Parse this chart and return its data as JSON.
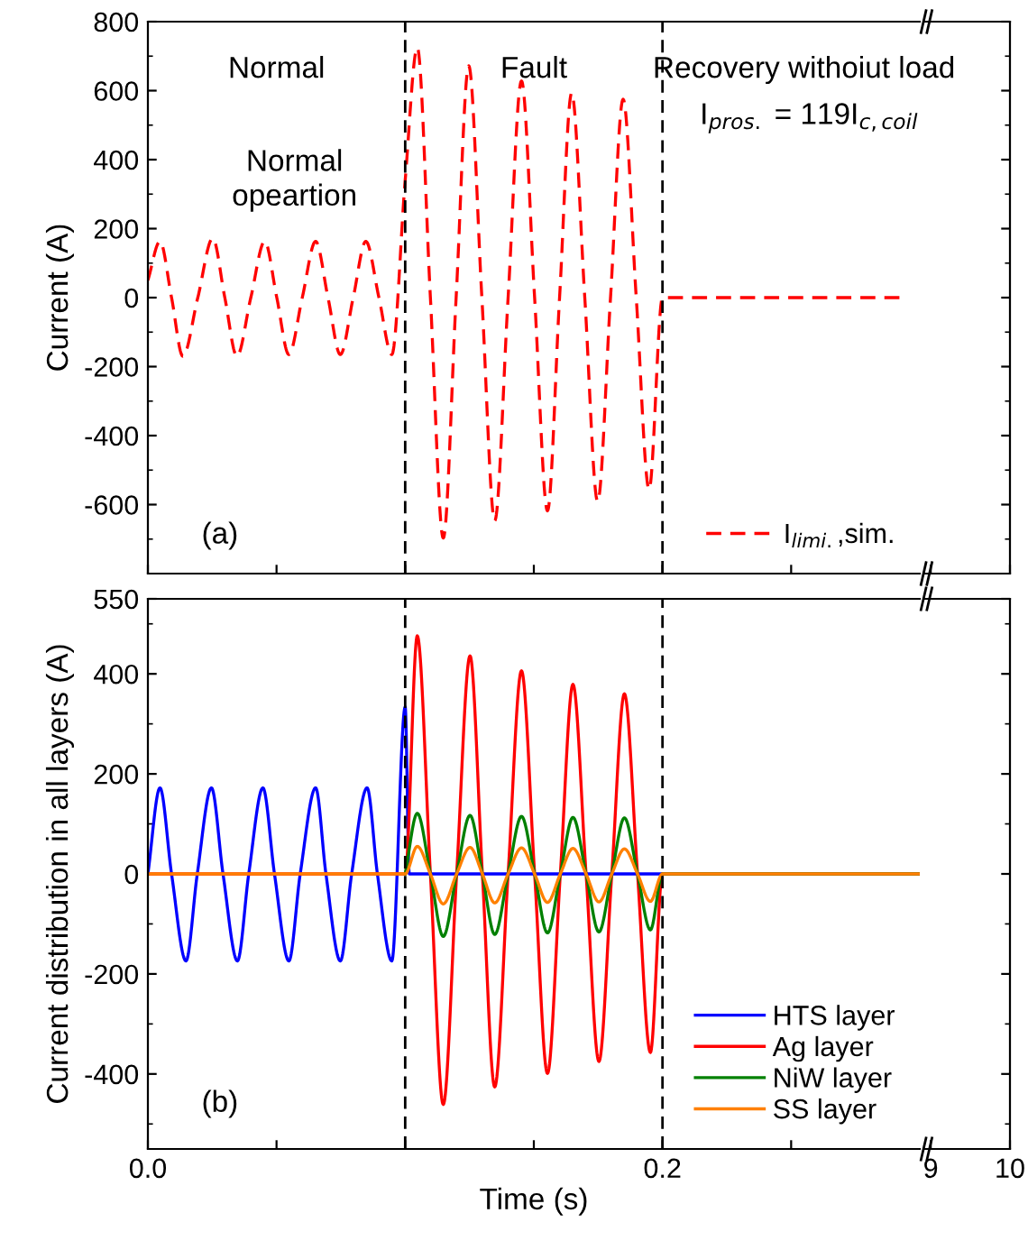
{
  "chart_data": [
    {
      "type": "line",
      "ylabel": "Current (A)",
      "xlim": [
        0,
        0.3
      ],
      "ylim": [
        -800,
        800
      ],
      "xticks": [
        {
          "value": 0,
          "label": null
        },
        {
          "value": 0.05,
          "label": null
        },
        {
          "value": 0.1,
          "label": null
        },
        {
          "value": 0.15,
          "label": null
        },
        {
          "value": 0.2,
          "label": null
        },
        {
          "value": 0.25,
          "label": null
        }
      ],
      "yticks": [
        -600,
        -400,
        -200,
        0,
        200,
        400,
        600,
        800
      ],
      "tick_labels": "y",
      "legend": "bottom right",
      "line_style": "dashed",
      "annotations": [
        "Normal",
        "Fault",
        "Recovery withoiut load",
        "Normal\nopeartion",
        "(a)",
        "I$_{pros.}$ = 119I$_{c,coil}$"
      ],
      "ref_lines": [
        {
          "axis": "x",
          "value": 0.1,
          "color": "#000000",
          "line_style": "dashed"
        },
        {
          "axis": "x",
          "value": 0.2,
          "color": "#000000",
          "line_style": "dashed"
        }
      ],
      "series": [
        {
          "name": "I$_{limi.}$,sim.",
          "color": "#ff0000",
          "x": [
            0,
            0.0047,
            0.0092,
            0.0136,
            0.0194,
            0.0252,
            0.0299,
            0.0346,
            0.04,
            0.0454,
            0.0501,
            0.0548,
            0.06,
            0.0652,
            0.07,
            0.0748,
            0.0798,
            0.0847,
            0.0898,
            0.0948,
            0.1,
            0.1047,
            0.1098,
            0.1148,
            0.1198,
            0.1247,
            0.1298,
            0.1348,
            0.14,
            0.1452,
            0.1503,
            0.1553,
            0.16,
            0.1647,
            0.1698,
            0.1748,
            0.1798,
            0.1847,
            0.1898,
            0.1948,
            0.2,
            0.25,
            0.294
          ],
          "values": [
            50,
            163,
            0,
            -170,
            0,
            172,
            0,
            -170,
            0,
            163,
            0,
            -165,
            0,
            163,
            0,
            -165,
            0,
            163,
            0,
            -165,
            340,
            725,
            0,
            -697,
            0,
            672,
            0,
            -647,
            0,
            628,
            0,
            -618,
            0,
            593,
            0,
            -591,
            0,
            575,
            0,
            -556,
            0,
            0,
            0
          ]
        }
      ]
    },
    {
      "type": "line",
      "xlim": [
        8.93,
        10
      ],
      "ylim": [
        -800,
        800
      ],
      "xticks": [
        9,
        10
      ],
      "yticks": [
        -600,
        -400,
        -200,
        0,
        200,
        400,
        600,
        800
      ],
      "tick_labels": false
    },
    {
      "type": "line",
      "xlabel": "Time (s)",
      "ylabel": "Current distribution in all layers (A)",
      "xlim": [
        0,
        0.3
      ],
      "ylim": [
        -550,
        550
      ],
      "xticks": [
        {
          "value": 0,
          "label": "0.0"
        },
        {
          "value": 0.05,
          "label": null
        },
        {
          "value": 0.1,
          "label": null
        },
        {
          "value": 0.15,
          "label": null
        },
        {
          "value": 0.2,
          "label": "0.2"
        },
        {
          "value": 0.25,
          "label": null
        }
      ],
      "yticks": [
        -400,
        -200,
        0,
        200,
        400,
        550
      ],
      "legend": "bottom right",
      "line_style": "solid",
      "annotations": [
        "(b)"
      ],
      "ref_lines": [
        {
          "axis": "x",
          "value": 0.1,
          "color": "#000000",
          "line_style": "dashed"
        },
        {
          "axis": "x",
          "value": 0.2,
          "color": "#000000",
          "line_style": "dashed"
        }
      ],
      "series": [
        {
          "name": "HTS layer",
          "color": "#0000ff",
          "x": [
            0,
            0.0047,
            0.0092,
            0.0148,
            0.0192,
            0.0247,
            0.0292,
            0.0348,
            0.0392,
            0.0447,
            0.0492,
            0.0548,
            0.0592,
            0.0652,
            0.0692,
            0.0748,
            0.0792,
            0.0852,
            0.0892,
            0.0948,
            0.1,
            0.1016,
            0.3
          ],
          "values": [
            0,
            172,
            0,
            -174,
            0,
            172,
            0,
            -174,
            0,
            172,
            0,
            -174,
            0,
            172,
            0,
            -174,
            0,
            172,
            0,
            -174,
            334,
            0,
            0
          ]
        },
        {
          "name": "Ag layer",
          "color": "#ff0000",
          "x": [
            0,
            0.1,
            0.1047,
            0.1098,
            0.1148,
            0.12,
            0.1252,
            0.13,
            0.1348,
            0.14,
            0.1452,
            0.1503,
            0.1553,
            0.1603,
            0.1652,
            0.1703,
            0.1753,
            0.1803,
            0.1852,
            0.1903,
            0.1953,
            0.2,
            0.3
          ],
          "values": [
            0,
            0,
            476,
            0,
            -461,
            0,
            436,
            0,
            -426,
            0,
            406,
            0,
            -399,
            0,
            379,
            0,
            -375,
            0,
            360,
            0,
            -357,
            0,
            0
          ]
        },
        {
          "name": "NiW layer",
          "color": "#008000",
          "x": [
            0.1,
            0.1047,
            0.1098,
            0.1148,
            0.12,
            0.1252,
            0.13,
            0.1348,
            0.14,
            0.1452,
            0.1503,
            0.1553,
            0.1603,
            0.1652,
            0.1703,
            0.1753,
            0.1803,
            0.1852,
            0.1903,
            0.1953,
            0.2,
            0.3
          ],
          "values": [
            0,
            121,
            0,
            -125,
            0,
            117,
            0,
            -121,
            0,
            115,
            0,
            -118,
            0,
            113,
            0,
            -116,
            0,
            112,
            0,
            -112,
            0,
            0
          ]
        },
        {
          "name": "SS layer",
          "color": "#ff8000",
          "x": [
            0,
            0.1,
            0.1047,
            0.1098,
            0.1148,
            0.12,
            0.1252,
            0.13,
            0.1348,
            0.14,
            0.1452,
            0.1503,
            0.1553,
            0.1603,
            0.1652,
            0.1703,
            0.1753,
            0.1803,
            0.1852,
            0.1903,
            0.1953,
            0.2,
            0.3
          ],
          "values": [
            0,
            0,
            55,
            0,
            -60,
            0,
            53,
            0,
            -58,
            0,
            52,
            0,
            -57,
            0,
            51,
            0,
            -56,
            0,
            50,
            0,
            -55,
            0,
            0
          ]
        }
      ]
    },
    {
      "type": "line",
      "xlim": [
        8.93,
        10
      ],
      "ylim": [
        -550,
        550
      ],
      "xticks": [
        9,
        10
      ],
      "yticks": [
        -400,
        -200,
        0,
        200,
        400,
        550
      ],
      "tick_labels": "x"
    }
  ]
}
